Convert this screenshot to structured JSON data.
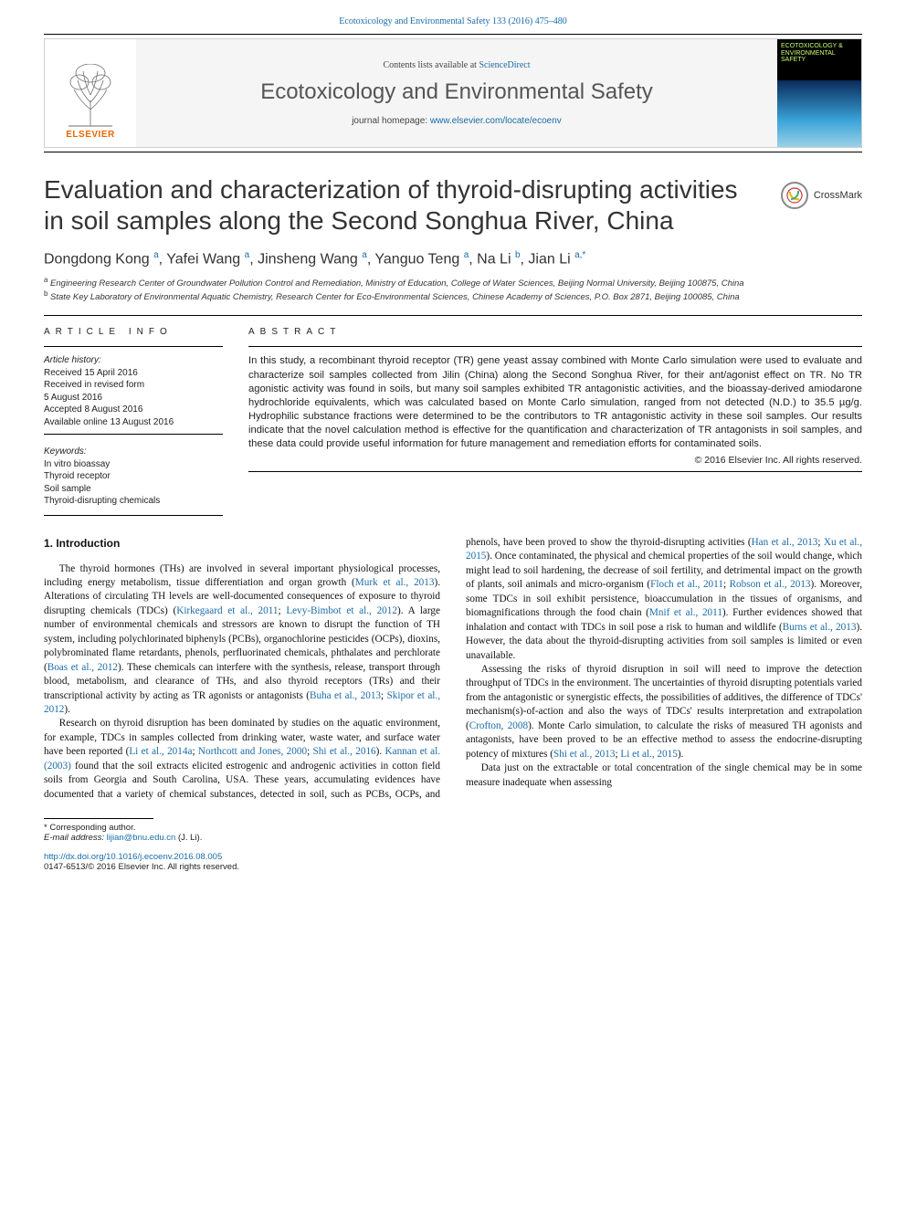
{
  "top_reference": "Ecotoxicology and Environmental Safety 133 (2016) 475–480",
  "header": {
    "contents_prefix": "Contents lists available at ",
    "contents_link": "ScienceDirect",
    "journal": "Ecotoxicology and Environmental Safety",
    "homepage_prefix": "journal homepage: ",
    "homepage_url": "www.elsevier.com/locate/ecoenv",
    "publisher": "ELSEVIER",
    "cover_title": "ECOTOXICOLOGY\n& ENVIRONMENTAL\nSAFETY"
  },
  "title": "Evaluation and characterization of thyroid-disrupting activities in soil samples along the Second Songhua River, China",
  "crossmark": "CrossMark",
  "authors_html": "Dongdong Kong <sup>a</sup>, Yafei Wang <sup>a</sup>, Jinsheng Wang <sup>a</sup>, Yanguo Teng <sup>a</sup>, Na Li <sup>b</sup>, Jian Li <sup>a,*</sup>",
  "affiliations": {
    "a": "Engineering Research Center of Groundwater Pollution Control and Remediation, Ministry of Education, College of Water Sciences, Beijing Normal University, Beijing 100875, China",
    "b": "State Key Laboratory of Environmental Aquatic Chemistry, Research Center for Eco-Environmental Sciences, Chinese Academy of Sciences, P.O. Box 2871, Beijing 100085, China"
  },
  "article_info": {
    "heading": "ARTICLE INFO",
    "history_label": "Article history:",
    "history": [
      "Received 15 April 2016",
      "Received in revised form",
      "5 August 2016",
      "Accepted 8 August 2016",
      "Available online 13 August 2016"
    ],
    "keywords_label": "Keywords:",
    "keywords": [
      "In vitro bioassay",
      "Thyroid receptor",
      "Soil sample",
      "Thyroid-disrupting chemicals"
    ]
  },
  "abstract": {
    "heading": "ABSTRACT",
    "text": "In this study, a recombinant thyroid receptor (TR) gene yeast assay combined with Monte Carlo simulation were used to evaluate and characterize soil samples collected from Jilin (China) along the Second Songhua River, for their ant/agonist effect on TR. No TR agonistic activity was found in soils, but many soil samples exhibited TR antagonistic activities, and the bioassay-derived amiodarone hydrochloride equivalents, which was calculated based on Monte Carlo simulation, ranged from not detected (N.D.) to 35.5 µg/g. Hydrophilic substance fractions were determined to be the contributors to TR antagonistic activity in these soil samples. Our results indicate that the novel calculation method is effective for the quantification and characterization of TR antagonists in soil samples, and these data could provide useful information for future management and remediation efforts for contaminated soils.",
    "copyright": "© 2016 Elsevier Inc. All rights reserved."
  },
  "intro": {
    "heading": "1.  Introduction",
    "p1a": "The thyroid hormones (THs) are involved in several important physiological processes, including energy metabolism, tissue differentiation and organ growth (",
    "p1r1": "Murk et al., 2013",
    "p1b": "). Alterations of circulating TH levels are well-documented consequences of exposure to thyroid disrupting chemicals (TDCs) (",
    "p1r2": "Kirkegaard et al., 2011",
    "p1c": "; ",
    "p1r3": "Levy-Bimbot et al., 2012",
    "p1d": "). A large number of environmental chemicals and stressors are known to disrupt the function of TH system, including polychlorinated biphenyls (PCBs), organochlorine pesticides (OCPs), dioxins, polybrominated flame retardants, phenols, perfluorinated chemicals, phthalates and perchlorate (",
    "p1r4": "Boas et al., 2012",
    "p1e": "). These chemicals can interfere with the synthesis, release, transport through blood, metabolism, and clearance of THs, and also thyroid receptors (TRs) and their transcriptional activity by acting as TR agonists or antagonists (",
    "p1r5": "Buha et al., 2013",
    "p1f": "; ",
    "p1r6": "Skipor et al., 2012",
    "p1g": ").",
    "p2a": "Research on thyroid disruption has been dominated by studies on the aquatic environment, for example, TDCs in samples collected from drinking water, waste water, and surface water have been reported (",
    "p2r1": "Li et al., 2014a",
    "p2b": "; ",
    "p2r2": "Northcott and Jones, 2000",
    "p2c": "; ",
    "p2r3": "Shi et al., 2016",
    "p2d": "). ",
    "p2r4": "Kannan et al. (2003)",
    "p2e": " found that the soil extracts elicited estrogenic and androgenic activities in cotton field soils from",
    "p2f": "Georgia and South Carolina, USA. These years, accumulating evidences have documented that a variety of chemical substances, detected in soil, such as PCBs, OCPs, and phenols, have been proved to show the thyroid-disrupting activities (",
    "p2r5": "Han et al., 2013",
    "p2g": "; ",
    "p2r6": "Xu et al., 2015",
    "p2h": "). Once contaminated, the physical and chemical properties of the soil would change, which might lead to soil hardening, the decrease of soil fertility, and detrimental impact on the growth of plants, soil animals and micro-organism (",
    "p2r7": "Floch et al., 2011",
    "p2i": "; ",
    "p2r8": "Robson et al., 2013",
    "p2j": "). Moreover, some TDCs in soil exhibit persistence, bioaccumulation in the tissues of organisms, and biomagnifications through the food chain (",
    "p2r9": "Mnif et al., 2011",
    "p2k": "). Further evidences showed that inhalation and contact with TDCs in soil pose a risk to human and wildlife (",
    "p2r10": "Burns et al., 2013",
    "p2l": "). However, the data about the thyroid-disrupting activities from soil samples is limited or even unavailable.",
    "p3a": "Assessing the risks of thyroid disruption in soil will need to improve the detection throughput of TDCs in the environment. The uncertainties of thyroid disrupting potentials varied from the antagonistic or synergistic effects, the possibilities of additives, the difference of TDCs' mechanism(s)-of-action and also the ways of TDCs' results interpretation and extrapolation (",
    "p3r1": "Crofton, 2008",
    "p3b": "). Monte Carlo simulation, to calculate the risks of measured TH agonists and antagonists, have been proved to be an effective method to assess the endocrine-disrupting potency of mixtures (",
    "p3r2": "Shi et al., 2013",
    "p3c": "; ",
    "p3r3": "Li et al., 2015",
    "p3d": ").",
    "p4": "Data just on the extractable or total concentration of the single chemical may be in some measure inadequate when assessing"
  },
  "footer": {
    "corresponding": "* Corresponding author.",
    "email_label": "E-mail address: ",
    "email": "lijian@bnu.edu.cn",
    "email_suffix": " (J. Li).",
    "doi": "http://dx.doi.org/10.1016/j.ecoenv.2016.08.005",
    "issn_line": "0147-6513/© 2016 Elsevier Inc. All rights reserved."
  },
  "colors": {
    "link": "#1a6ba8",
    "elsevier_orange": "#eb6500",
    "cover_green": "#c7ff6e"
  }
}
